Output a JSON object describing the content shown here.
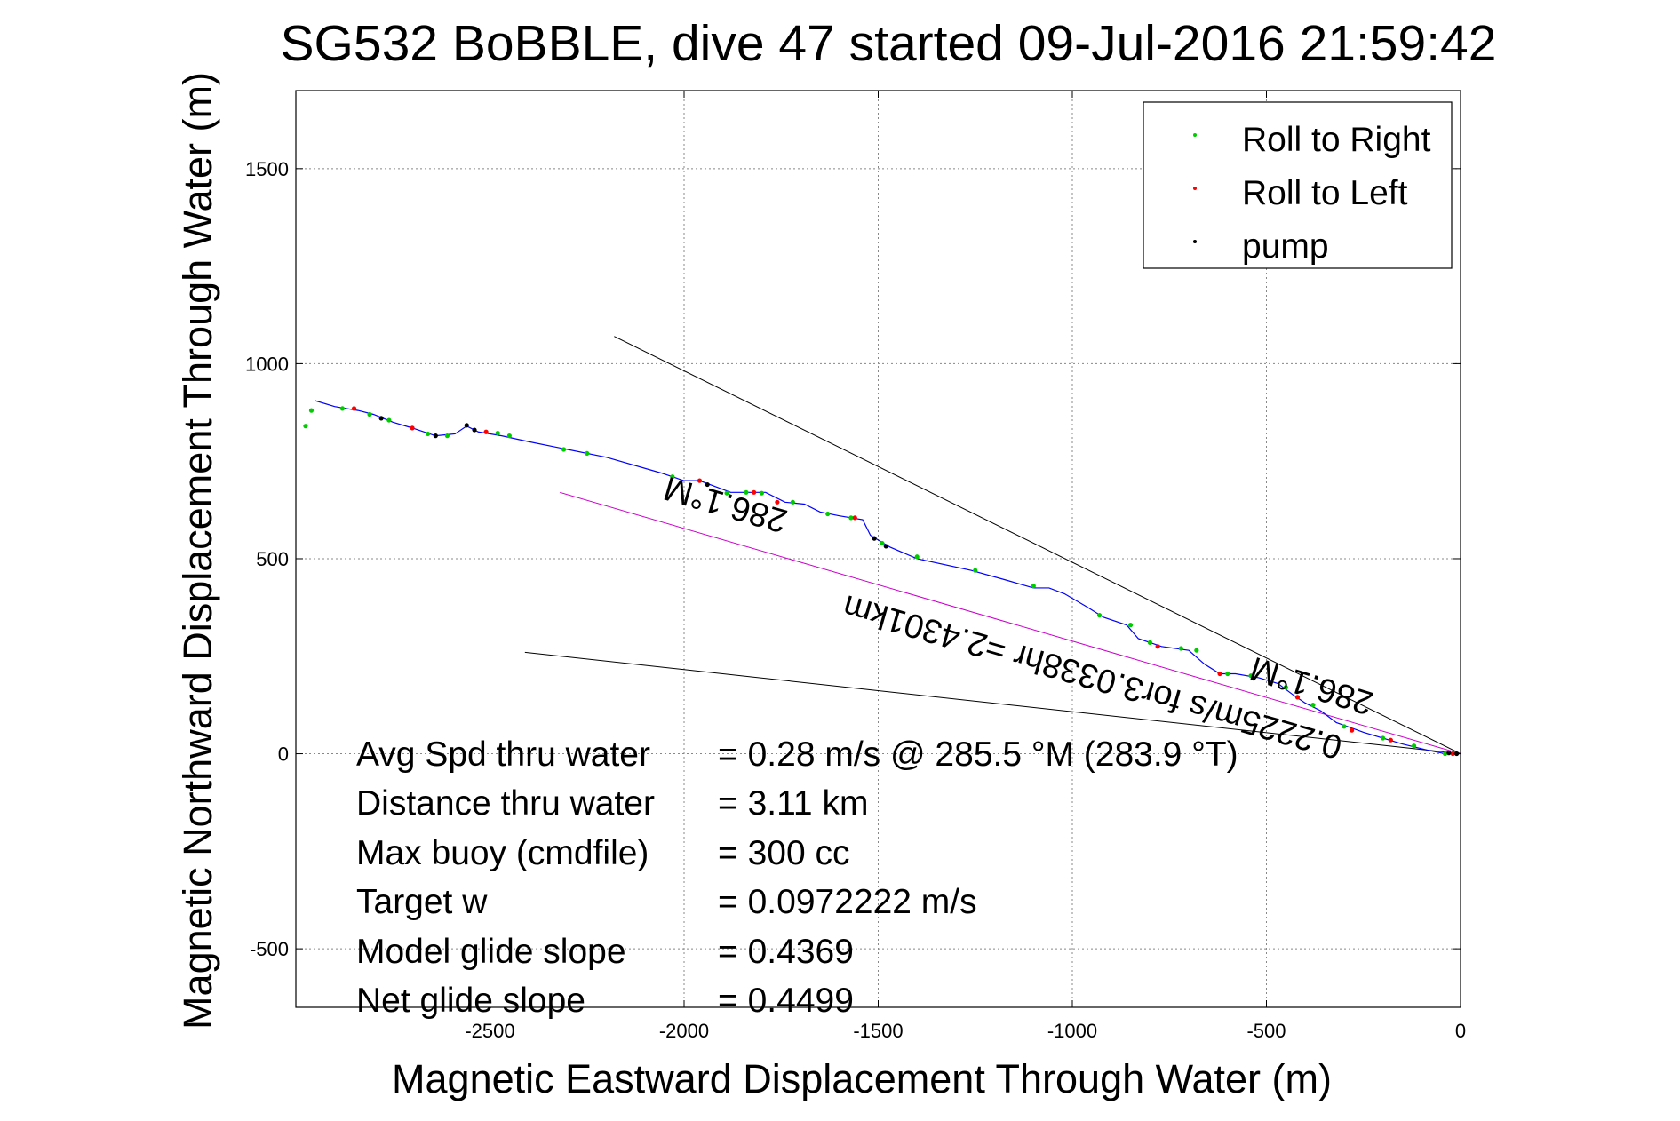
{
  "chart_data": {
    "type": "scatter",
    "title": "SG532 BoBBLE, dive 47 started 09-Jul-2016 21:59:42",
    "xlabel": "Magnetic Eastward Displacement Through Water (m)",
    "ylabel": "Magnetic Northward Displacement Through Water (m)",
    "xlim": [
      -3000,
      0
    ],
    "ylim": [
      -650,
      1700
    ],
    "xticks": [
      -2500,
      -2000,
      -1500,
      -1000,
      -500,
      0
    ],
    "yticks": [
      -500,
      0,
      500,
      1000,
      1500
    ],
    "x_tick_labels": [
      "-2500",
      "-2000",
      "-1500",
      "-1000",
      "-500",
      "0"
    ],
    "y_tick_labels": [
      "-500",
      "0",
      "500",
      "1000",
      "1500"
    ],
    "grid": true,
    "legend_position": "top-right",
    "legend": [
      {
        "label": "Roll to Right",
        "color": "#00cc00"
      },
      {
        "label": "Roll to Left",
        "color": "#ff0000"
      },
      {
        "label": "pump",
        "color": "#000000"
      }
    ],
    "track": {
      "color": "#0000ff",
      "points": [
        [
          0,
          0
        ],
        [
          -40,
          0
        ],
        [
          -80,
          8
        ],
        [
          -150,
          25
        ],
        [
          -250,
          55
        ],
        [
          -320,
          80
        ],
        [
          -360,
          110
        ],
        [
          -400,
          130
        ],
        [
          -430,
          150
        ],
        [
          -470,
          180
        ],
        [
          -520,
          195
        ],
        [
          -580,
          205
        ],
        [
          -620,
          205
        ],
        [
          -660,
          230
        ],
        [
          -700,
          265
        ],
        [
          -770,
          275
        ],
        [
          -830,
          295
        ],
        [
          -860,
          330
        ],
        [
          -920,
          350
        ],
        [
          -960,
          375
        ],
        [
          -1020,
          410
        ],
        [
          -1060,
          425
        ],
        [
          -1100,
          425
        ],
        [
          -1170,
          445
        ],
        [
          -1260,
          470
        ],
        [
          -1400,
          500
        ],
        [
          -1470,
          530
        ],
        [
          -1520,
          560
        ],
        [
          -1540,
          600
        ],
        [
          -1600,
          610
        ],
        [
          -1650,
          620
        ],
        [
          -1690,
          640
        ],
        [
          -1740,
          645
        ],
        [
          -1790,
          670
        ],
        [
          -1830,
          670
        ],
        [
          -1880,
          670
        ],
        [
          -1920,
          685
        ],
        [
          -1960,
          700
        ],
        [
          -2000,
          700
        ],
        [
          -2060,
          720
        ],
        [
          -2200,
          760
        ],
        [
          -2300,
          780
        ],
        [
          -2400,
          800
        ],
        [
          -2470,
          815
        ],
        [
          -2530,
          825
        ],
        [
          -2560,
          840
        ],
        [
          -2590,
          820
        ],
        [
          -2640,
          815
        ],
        [
          -2700,
          835
        ],
        [
          -2750,
          850
        ],
        [
          -2800,
          870
        ],
        [
          -2840,
          880
        ],
        [
          -2900,
          890
        ],
        [
          -2950,
          905
        ]
      ]
    },
    "series": [
      {
        "name": "Roll to Right",
        "color": "#00cc00",
        "points": [
          [
            -40,
            0
          ],
          [
            -120,
            20
          ],
          [
            -200,
            40
          ],
          [
            -300,
            70
          ],
          [
            -380,
            125
          ],
          [
            -450,
            170
          ],
          [
            -540,
            200
          ],
          [
            -600,
            205
          ],
          [
            -680,
            265
          ],
          [
            -720,
            270
          ],
          [
            -800,
            285
          ],
          [
            -850,
            330
          ],
          [
            -930,
            355
          ],
          [
            -1100,
            430
          ],
          [
            -1250,
            470
          ],
          [
            -1400,
            505
          ],
          [
            -1490,
            540
          ],
          [
            -1570,
            605
          ],
          [
            -1630,
            615
          ],
          [
            -1720,
            645
          ],
          [
            -1800,
            668
          ],
          [
            -1840,
            670
          ],
          [
            -1890,
            668
          ],
          [
            -2030,
            710
          ],
          [
            -2250,
            770
          ],
          [
            -2310,
            780
          ],
          [
            -2450,
            815
          ],
          [
            -2480,
            822
          ],
          [
            -2610,
            815
          ],
          [
            -2660,
            820
          ],
          [
            -2760,
            855
          ],
          [
            -2810,
            870
          ],
          [
            -2880,
            885
          ],
          [
            -2960,
            880
          ],
          [
            -2975,
            840
          ]
        ]
      },
      {
        "name": "Roll to Left",
        "color": "#ff0000",
        "points": [
          [
            -20,
            0
          ],
          [
            -180,
            35
          ],
          [
            -280,
            60
          ],
          [
            -420,
            145
          ],
          [
            -620,
            205
          ],
          [
            -780,
            275
          ],
          [
            -1560,
            605
          ],
          [
            -1760,
            645
          ],
          [
            -1820,
            670
          ],
          [
            -1960,
            700
          ],
          [
            -2510,
            825
          ],
          [
            -2700,
            835
          ],
          [
            -2850,
            885
          ]
        ]
      },
      {
        "name": "pump",
        "color": "#000000",
        "points": [
          [
            -10,
            0
          ],
          [
            -30,
            2
          ],
          [
            -1480,
            532
          ],
          [
            -1510,
            552
          ],
          [
            -1940,
            690
          ],
          [
            -2540,
            830
          ],
          [
            -2560,
            842
          ],
          [
            -2640,
            815
          ],
          [
            -2780,
            860
          ]
        ]
      }
    ],
    "reference_lines": [
      {
        "color": "#000000",
        "points": [
          [
            0,
            0
          ],
          [
            -2180,
            1070
          ]
        ]
      },
      {
        "color": "#000000",
        "points": [
          [
            0,
            0
          ],
          [
            -2410,
            260
          ]
        ]
      },
      {
        "color": "#cc00cc",
        "points": [
          [
            0,
            0
          ],
          [
            -2320,
            670
          ]
        ]
      }
    ],
    "annotations": [
      "286.1°M",
      "286.1°M",
      "0.2225m/s for3.0338hr =2.4301km"
    ],
    "stats": [
      {
        "label": "Avg Spd thru water",
        "value": "=  0.28 m/s @ 285.5 °M (283.9 °T)"
      },
      {
        "label": "Distance thru water",
        "value": "=  3.11 km"
      },
      {
        "label": "Max buoy (cmdfile)",
        "value": "= 300 cc"
      },
      {
        "label": "Target w",
        "value": "= 0.0972222 m/s"
      },
      {
        "label": "Model glide slope",
        "value": "= 0.4369"
      },
      {
        "label": "Net glide slope",
        "value": "= 0.4499"
      }
    ]
  }
}
